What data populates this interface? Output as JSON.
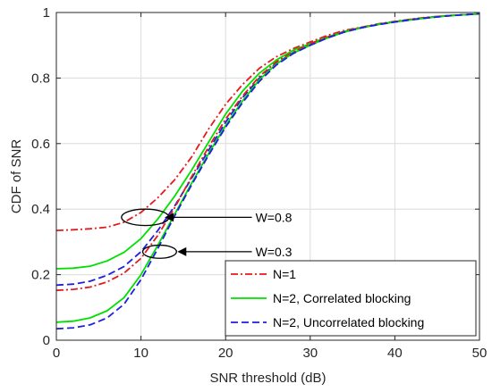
{
  "chart_data": {
    "type": "line",
    "title": "",
    "xlabel": "SNR threshold (dB)",
    "ylabel": "CDF of SNR",
    "xlim": [
      0,
      50
    ],
    "ylim": [
      0,
      1
    ],
    "xticks": [
      0,
      10,
      20,
      30,
      40,
      50
    ],
    "yticks": [
      0,
      0.2,
      0.4,
      0.6,
      0.8,
      1
    ],
    "grid": true,
    "legend": {
      "position": "bottom-right",
      "entries": [
        {
          "label": "N=1",
          "color": "#e41a1c",
          "dash": "dashdot"
        },
        {
          "label": "N=2, Correlated blocking",
          "color": "#00e000",
          "dash": "solid"
        },
        {
          "label": "N=2, Uncorrelated blocking",
          "color": "#1f1fe0",
          "dash": "dashed"
        }
      ]
    },
    "series": [
      {
        "legend": 0,
        "group": "W=0.8",
        "x": [
          0,
          2,
          4,
          6,
          8,
          10,
          12,
          14,
          16,
          18,
          20,
          22,
          24,
          26,
          28,
          30,
          32,
          34,
          36,
          38,
          40,
          42,
          44,
          46,
          48,
          50
        ],
        "y": [
          0.335,
          0.337,
          0.34,
          0.345,
          0.36,
          0.39,
          0.435,
          0.49,
          0.56,
          0.645,
          0.72,
          0.78,
          0.83,
          0.865,
          0.89,
          0.91,
          0.93,
          0.945,
          0.955,
          0.965,
          0.973,
          0.98,
          0.986,
          0.99,
          0.993,
          0.996
        ]
      },
      {
        "legend": 1,
        "group": "W=0.8",
        "x": [
          0,
          2,
          4,
          6,
          8,
          10,
          12,
          14,
          16,
          18,
          20,
          22,
          24,
          26,
          28,
          30,
          32,
          34,
          36,
          38,
          40,
          42,
          44,
          46,
          48,
          50
        ],
        "y": [
          0.218,
          0.22,
          0.226,
          0.242,
          0.268,
          0.31,
          0.37,
          0.44,
          0.52,
          0.605,
          0.69,
          0.76,
          0.815,
          0.855,
          0.885,
          0.905,
          0.925,
          0.942,
          0.954,
          0.964,
          0.972,
          0.979,
          0.985,
          0.99,
          0.993,
          0.996
        ]
      },
      {
        "legend": 2,
        "group": "W=0.8",
        "x": [
          0,
          2,
          4,
          6,
          8,
          10,
          12,
          14,
          16,
          18,
          20,
          22,
          24,
          26,
          28,
          30,
          32,
          34,
          36,
          38,
          40,
          42,
          44,
          46,
          48,
          50
        ],
        "y": [
          0.168,
          0.171,
          0.18,
          0.198,
          0.225,
          0.27,
          0.335,
          0.41,
          0.495,
          0.58,
          0.665,
          0.74,
          0.8,
          0.845,
          0.878,
          0.9,
          0.922,
          0.94,
          0.953,
          0.963,
          0.971,
          0.978,
          0.984,
          0.989,
          0.993,
          0.996
        ]
      },
      {
        "legend": 0,
        "group": "W=0.3",
        "x": [
          0,
          2,
          4,
          6,
          8,
          10,
          12,
          14,
          16,
          18,
          20,
          22,
          24,
          26,
          28,
          30,
          32,
          34,
          36,
          38,
          40,
          42,
          44,
          46,
          48,
          50
        ],
        "y": [
          0.152,
          0.155,
          0.162,
          0.178,
          0.205,
          0.25,
          0.32,
          0.405,
          0.5,
          0.59,
          0.675,
          0.745,
          0.805,
          0.85,
          0.88,
          0.905,
          0.925,
          0.942,
          0.954,
          0.964,
          0.972,
          0.979,
          0.985,
          0.99,
          0.993,
          0.996
        ]
      },
      {
        "legend": 1,
        "group": "W=0.3",
        "x": [
          0,
          2,
          4,
          6,
          8,
          10,
          12,
          14,
          16,
          18,
          20,
          22,
          24,
          26,
          28,
          30,
          32,
          34,
          36,
          38,
          40,
          42,
          44,
          46,
          48,
          50
        ],
        "y": [
          0.055,
          0.058,
          0.068,
          0.09,
          0.13,
          0.2,
          0.29,
          0.385,
          0.48,
          0.57,
          0.655,
          0.73,
          0.795,
          0.843,
          0.876,
          0.9,
          0.922,
          0.94,
          0.953,
          0.963,
          0.971,
          0.978,
          0.984,
          0.989,
          0.993,
          0.996
        ]
      },
      {
        "legend": 2,
        "group": "W=0.3",
        "x": [
          0,
          2,
          4,
          6,
          8,
          10,
          12,
          14,
          16,
          18,
          20,
          22,
          24,
          26,
          28,
          30,
          32,
          34,
          36,
          38,
          40,
          42,
          44,
          46,
          48,
          50
        ],
        "y": [
          0.035,
          0.038,
          0.047,
          0.068,
          0.11,
          0.185,
          0.28,
          0.38,
          0.475,
          0.565,
          0.65,
          0.725,
          0.79,
          0.84,
          0.875,
          0.9,
          0.922,
          0.94,
          0.953,
          0.963,
          0.971,
          0.978,
          0.984,
          0.989,
          0.993,
          0.996
        ]
      }
    ],
    "annotations": [
      {
        "text": "W=0.8",
        "target": [
          12.8,
          0.375
        ],
        "text_at": [
          23,
          0.375
        ],
        "ellipse_center": [
          10.5,
          0.375
        ],
        "ellipse_rx": 2.8,
        "ellipse_ry": 0.025
      },
      {
        "text": "W=0.3",
        "target": [
          14.3,
          0.27
        ],
        "text_at": [
          23,
          0.27
        ],
        "ellipse_center": [
          12.2,
          0.27
        ],
        "ellipse_rx": 2.0,
        "ellipse_ry": 0.02
      }
    ]
  }
}
